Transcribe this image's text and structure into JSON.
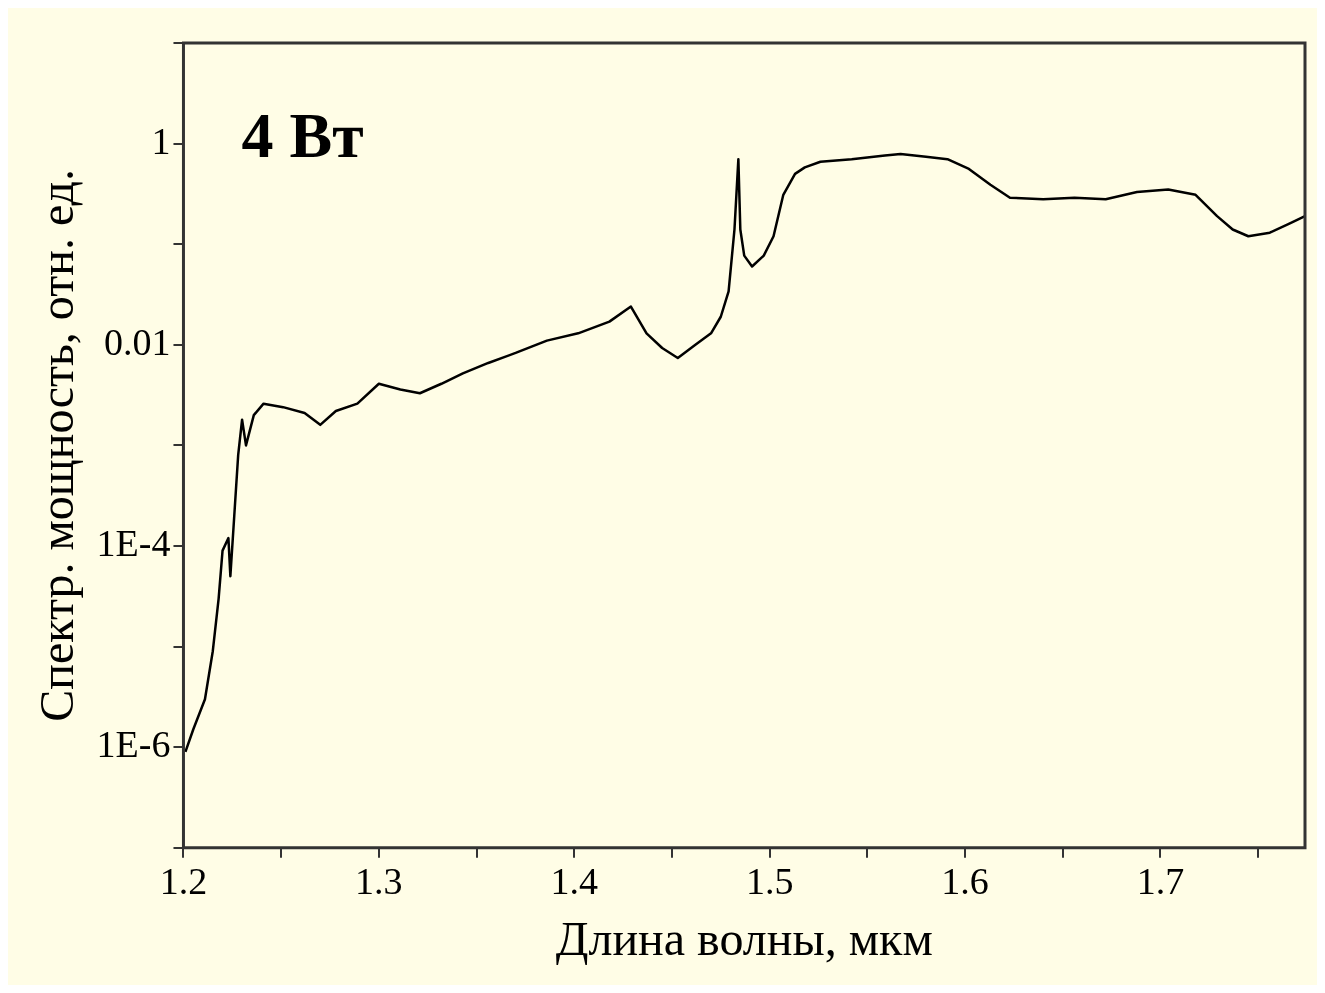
{
  "chart_data": {
    "type": "line",
    "xlabel": "Длина волны, мкм",
    "ylabel": "Спектр. мощность, отн. ед.",
    "annotations": [
      {
        "text": "4 Вт"
      }
    ],
    "log": "y",
    "grid": false,
    "legend": false,
    "marker": "none",
    "line_style": "solid",
    "xlim": [
      1.2,
      1.774
    ],
    "xticks": [
      1.2,
      {
        "value": 1.25,
        "label": null
      },
      1.3,
      {
        "value": 1.35,
        "label": null
      },
      1.4,
      {
        "value": 1.45,
        "label": null
      },
      1.5,
      {
        "value": 1.55,
        "label": null
      },
      1.6,
      {
        "value": 1.65,
        "label": null
      },
      1.7,
      {
        "value": 1.75,
        "label": null
      }
    ],
    "ylim": [
      1e-07,
      10
    ],
    "yticks": [
      {
        "value": 1e-07,
        "label": null
      },
      {
        "value": 1e-06,
        "label": "1E-6"
      },
      {
        "value": 1e-05,
        "label": null
      },
      {
        "value": 0.0001,
        "label": "1E-4"
      },
      {
        "value": 0.001,
        "label": null
      },
      0.01,
      {
        "value": 0.1,
        "label": null
      },
      1,
      {
        "value": 10,
        "label": null
      }
    ],
    "series": [
      {
        "color": "#000000",
        "x": [
          1.201,
          1.205,
          1.211,
          1.215,
          1.218,
          1.22,
          1.223,
          1.224,
          1.226,
          1.228,
          1.23,
          1.232,
          1.236,
          1.241,
          1.251,
          1.262,
          1.27,
          1.278,
          1.289,
          1.3,
          1.311,
          1.321,
          1.332,
          1.343,
          1.356,
          1.37,
          1.386,
          1.402,
          1.418,
          1.429,
          1.437,
          1.445,
          1.453,
          1.462,
          1.47,
          1.475,
          1.479,
          1.482,
          1.484,
          1.485,
          1.487,
          1.491,
          1.497,
          1.502,
          1.507,
          1.513,
          1.518,
          1.526,
          1.542,
          1.559,
          1.567,
          1.58,
          1.591,
          1.602,
          1.613,
          1.623,
          1.64,
          1.656,
          1.672,
          1.688,
          1.704,
          1.718,
          1.729,
          1.737,
          1.745,
          1.756,
          1.766,
          1.774
        ],
        "values": [
          9e-07,
          1.5e-06,
          3e-06,
          9e-06,
          3e-05,
          9e-05,
          0.00012,
          5e-05,
          0.0002,
          0.0008,
          0.0018,
          0.001,
          0.002,
          0.0026,
          0.0024,
          0.0021,
          0.0016,
          0.0022,
          0.0026,
          0.0041,
          0.0036,
          0.0033,
          0.0041,
          0.0052,
          0.0066,
          0.0083,
          0.011,
          0.013,
          0.017,
          0.024,
          0.013,
          0.0093,
          0.0074,
          0.01,
          0.013,
          0.019,
          0.034,
          0.14,
          0.7,
          0.14,
          0.077,
          0.06,
          0.077,
          0.12,
          0.31,
          0.5,
          0.58,
          0.66,
          0.7,
          0.76,
          0.79,
          0.74,
          0.7,
          0.56,
          0.39,
          0.29,
          0.28,
          0.29,
          0.28,
          0.33,
          0.35,
          0.31,
          0.19,
          0.14,
          0.12,
          0.13,
          0.16,
          0.19
        ]
      }
    ]
  }
}
